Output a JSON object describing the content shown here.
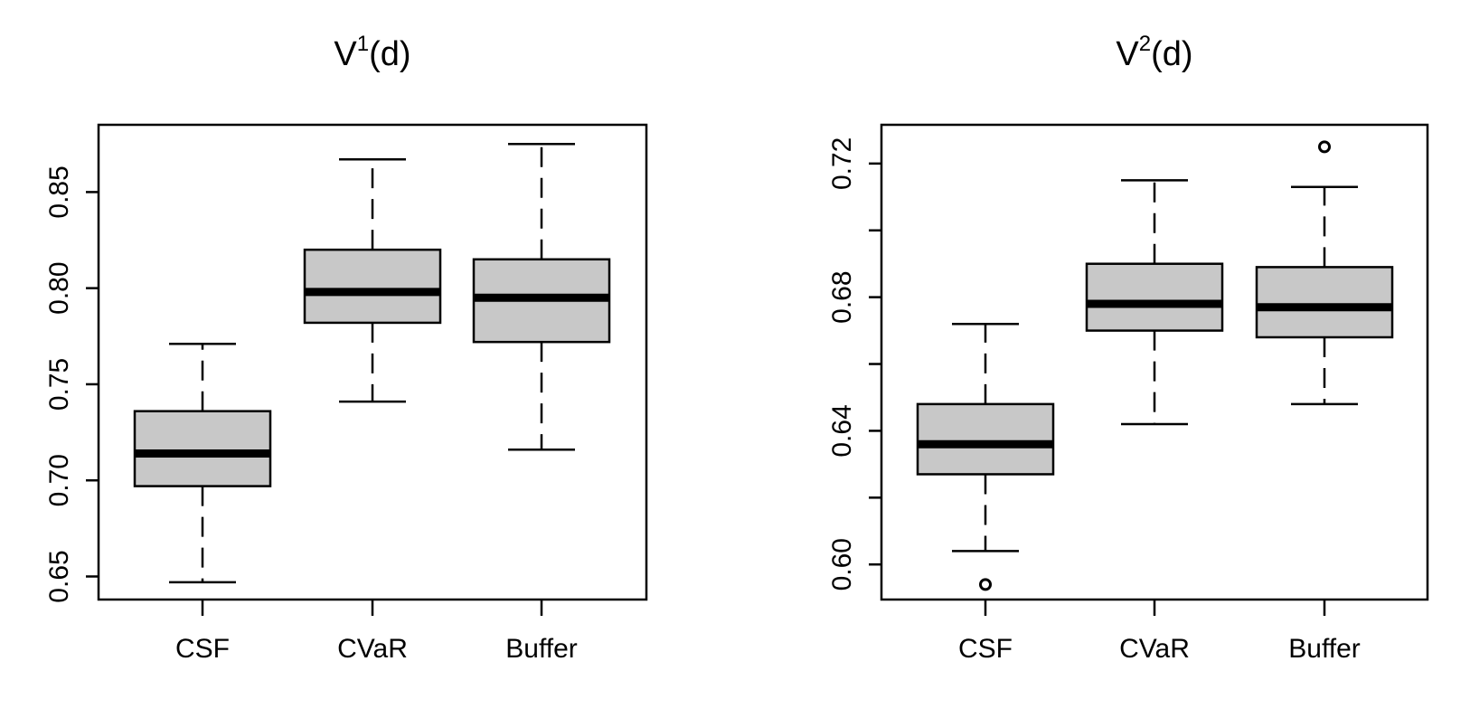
{
  "chart_data": [
    {
      "type": "boxplot",
      "title_base": "V",
      "title_sup": "1",
      "title_tail": "(d)",
      "categories": [
        "CSF",
        "CVaR",
        "Buffer"
      ],
      "yticks": [
        0.65,
        0.7,
        0.75,
        0.8,
        0.85
      ],
      "ytick_labels": [
        "0.65",
        "0.70",
        "0.75",
        "0.80",
        "0.85"
      ],
      "ylim": [
        0.638,
        0.885
      ],
      "boxes": [
        {
          "category": "CSF",
          "whisker_low": 0.647,
          "q1": 0.697,
          "median": 0.714,
          "q3": 0.736,
          "whisker_high": 0.771,
          "outliers": []
        },
        {
          "category": "CVaR",
          "whisker_low": 0.741,
          "q1": 0.782,
          "median": 0.798,
          "q3": 0.82,
          "whisker_high": 0.867,
          "outliers": []
        },
        {
          "category": "Buffer",
          "whisker_low": 0.716,
          "q1": 0.772,
          "median": 0.795,
          "q3": 0.815,
          "whisker_high": 0.875,
          "outliers": []
        }
      ],
      "box_fill": "#c8c8c8"
    },
    {
      "type": "boxplot",
      "title_base": "V",
      "title_sup": "2",
      "title_tail": "(d)",
      "categories": [
        "CSF",
        "CVaR",
        "Buffer"
      ],
      "yticks": [
        0.6,
        0.62,
        0.64,
        0.66,
        0.68,
        0.7,
        0.72
      ],
      "ytick_labels": [
        "0.60",
        "",
        "0.64",
        "",
        "0.68",
        "",
        "0.72"
      ],
      "ylim": [
        0.5895,
        0.7316
      ],
      "boxes": [
        {
          "category": "CSF",
          "whisker_low": 0.604,
          "q1": 0.627,
          "median": 0.636,
          "q3": 0.648,
          "whisker_high": 0.672,
          "outliers": [
            0.594
          ]
        },
        {
          "category": "CVaR",
          "whisker_low": 0.642,
          "q1": 0.67,
          "median": 0.678,
          "q3": 0.69,
          "whisker_high": 0.715,
          "outliers": []
        },
        {
          "category": "Buffer",
          "whisker_low": 0.648,
          "q1": 0.668,
          "median": 0.677,
          "q3": 0.689,
          "whisker_high": 0.713,
          "outliers": [
            0.725
          ]
        }
      ],
      "box_fill": "#c8c8c8"
    }
  ]
}
